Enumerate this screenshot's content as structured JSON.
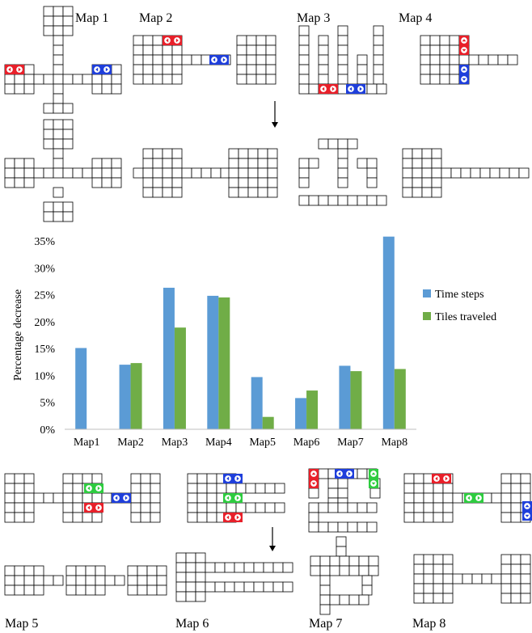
{
  "map_labels_top": [
    "Map 1",
    "Map 2",
    "Map 3",
    "Map 4"
  ],
  "map_labels_bottom": [
    "Map 5",
    "Map 6",
    "Map 7",
    "Map 8"
  ],
  "colors": {
    "time_steps": "#5b9bd5",
    "tiles_traveled": "#70ad47",
    "agent_red": "#e8202a",
    "agent_blue": "#1f3fdb",
    "agent_green": "#2ecc40",
    "grid_line": "#000000"
  },
  "chart_data": {
    "type": "bar",
    "categories": [
      "Map1",
      "Map2",
      "Map3",
      "Map4",
      "Map5",
      "Map6",
      "Map7",
      "Map8"
    ],
    "series": [
      {
        "name": "Time steps",
        "values": [
          15.1,
          12.0,
          26.3,
          24.8,
          9.7,
          5.8,
          11.8,
          35.8
        ]
      },
      {
        "name": "Tiles traveled",
        "values": [
          0,
          12.3,
          18.9,
          24.5,
          2.3,
          7.2,
          10.8,
          11.2
        ]
      }
    ],
    "yticks": [
      "0%",
      "5%",
      "10%",
      "15%",
      "20%",
      "25%",
      "30%",
      "35%"
    ],
    "ylabel": "Percentage decrease",
    "ylim": [
      0,
      35
    ],
    "grid": false,
    "legend_position": "right"
  }
}
